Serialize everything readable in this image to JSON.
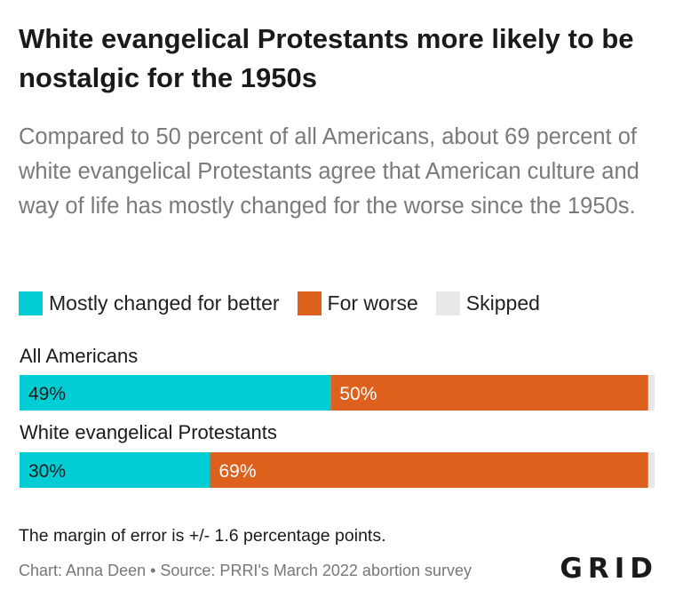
{
  "title": "White evangelical Protestants more likely to be nostalgic for the 1950s",
  "subtitle": "Compared to 50 percent of all Americans, about 69 percent of white evangelical Protestants agree that American culture and way of life has mostly changed for the worse since the 1950s.",
  "note": "The margin of error is +/- 1.6 percentage points.",
  "footer": "Chart: Anna Deen • Source: PRRI's March 2022 abortion survey",
  "logo": "GRID",
  "colors": {
    "better": "#00cdd4",
    "worse": "#dd601d",
    "skipped": "#e8e8e8"
  },
  "chart_data": {
    "type": "bar",
    "orientation": "horizontal",
    "stacked": true,
    "categories": [
      "All Americans",
      "White evangelical Protestants"
    ],
    "series": [
      {
        "name": "Mostly changed for better",
        "values": [
          49,
          30
        ],
        "labels": [
          "49%",
          "30%"
        ]
      },
      {
        "name": "For worse",
        "values": [
          50,
          69
        ],
        "labels": [
          "50%",
          "69%"
        ]
      },
      {
        "name": "Skipped",
        "values": [
          1,
          1
        ],
        "labels": [
          "",
          ""
        ]
      }
    ],
    "xlim": [
      0,
      100
    ],
    "legend": "top-left",
    "grid": false
  }
}
